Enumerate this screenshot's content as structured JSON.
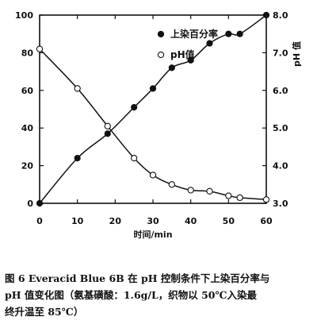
{
  "chart_data": {
    "type": "scatter",
    "xlabel": "时间/min",
    "ylabel_right": "pH 值",
    "x_ticks": [
      "0",
      "10",
      "20",
      "30",
      "40",
      "50",
      "60"
    ],
    "y_left_ticks": [
      "0",
      "20",
      "40",
      "60",
      "80",
      "100"
    ],
    "y_right_ticks": [
      "3.0",
      "4.0",
      "5.0",
      "6.0",
      "7.0",
      "8.0"
    ],
    "xlim": [
      0,
      60
    ],
    "ylim_left": [
      0,
      100
    ],
    "ylim_right": [
      3.0,
      8.0
    ],
    "grid": false,
    "legend_position": "top-right",
    "series": [
      {
        "name": "上染百分率",
        "axis": "left",
        "marker": "filled-circle",
        "x": [
          0,
          10,
          18,
          25,
          30,
          35,
          40,
          45,
          50,
          53,
          60
        ],
        "y": [
          0,
          24,
          37,
          51,
          61,
          72,
          76,
          85,
          90,
          90,
          100
        ]
      },
      {
        "name": "pH值",
        "axis": "right",
        "marker": "open-circle",
        "x": [
          0,
          10,
          18,
          25,
          30,
          35,
          40,
          45,
          50,
          53,
          60
        ],
        "y": [
          7.1,
          6.05,
          5.05,
          4.2,
          3.75,
          3.5,
          3.35,
          3.32,
          3.2,
          3.15,
          3.1
        ]
      }
    ]
  },
  "caption": {
    "line1": "图 6 Everacid Blue 6B 在 pH 控制条件下上染百分率与",
    "line2": "pH 值变化图（氨基磺酸：1.6g/L，织物以 50℃入染最",
    "line3": "终升温至 85℃）"
  }
}
